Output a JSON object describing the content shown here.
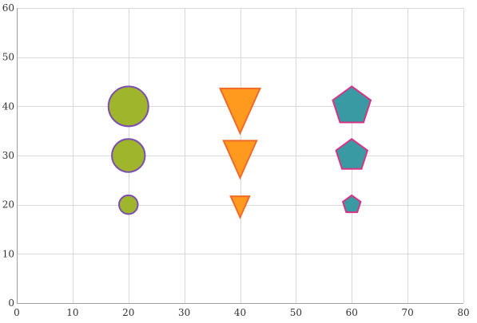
{
  "chart_data": {
    "type": "scatter",
    "title": "",
    "xlabel": "",
    "ylabel": "",
    "xlim": [
      0,
      80
    ],
    "ylim": [
      0,
      60
    ],
    "x_ticks": [
      0,
      10,
      20,
      30,
      40,
      50,
      60,
      70,
      80
    ],
    "y_ticks": [
      0,
      10,
      20,
      30,
      40,
      50,
      60
    ],
    "grid": true,
    "series": [
      {
        "marker": "circle",
        "fill": "#9fb52b",
        "stroke": "#7a4fb0",
        "points": [
          {
            "x": 20,
            "y": 20,
            "size": 1
          },
          {
            "x": 20,
            "y": 30,
            "size": 5
          },
          {
            "x": 20,
            "y": 40,
            "size": 8
          }
        ]
      },
      {
        "marker": "triangle-down",
        "fill": "#ff9a1f",
        "stroke": "#f06a2a",
        "points": [
          {
            "x": 40,
            "y": 20,
            "size": 1
          },
          {
            "x": 40,
            "y": 30,
            "size": 5
          },
          {
            "x": 40,
            "y": 40,
            "size": 8
          }
        ]
      },
      {
        "marker": "pentagon",
        "fill": "#3a9aa4",
        "stroke": "#d63384",
        "points": [
          {
            "x": 60,
            "y": 20,
            "size": 1
          },
          {
            "x": 60,
            "y": 30,
            "size": 5
          },
          {
            "x": 60,
            "y": 40,
            "size": 8
          }
        ]
      }
    ]
  }
}
